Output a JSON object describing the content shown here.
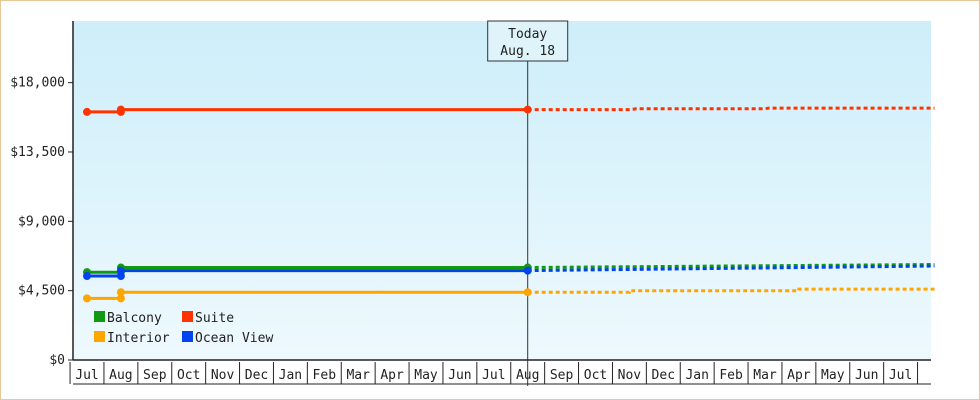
{
  "chart_data": {
    "type": "line",
    "x_months": [
      "Jul",
      "Aug",
      "Sep",
      "Oct",
      "Nov",
      "Dec",
      "Jan",
      "Feb",
      "Mar",
      "Apr",
      "May",
      "Jun",
      "Jul",
      "Aug",
      "Sep",
      "Oct",
      "Nov",
      "Dec",
      "Jan",
      "Feb",
      "Mar",
      "Apr",
      "May",
      "Jun",
      "Jul"
    ],
    "ylim": [
      0,
      22000
    ],
    "yticks": [
      0,
      4500,
      9000,
      13500,
      18000
    ],
    "ytick_labels": [
      "$0",
      "$4,500",
      "$9,000",
      "$13,500",
      "$18,000"
    ],
    "grid": false,
    "legend_position": "bottom-left",
    "today_marker": {
      "line1": "Today",
      "line2": "Aug. 18",
      "month_index": 13
    },
    "series": [
      {
        "name": "Suite",
        "color": "#ff3300",
        "history": [
          [
            0.0,
            16100
          ],
          [
            1.0,
            16100
          ],
          [
            1.0,
            16250
          ],
          [
            13.0,
            16250
          ]
        ],
        "forecast": [
          [
            13.0,
            16250
          ],
          [
            16.0,
            16250
          ],
          [
            16.2,
            16300
          ],
          [
            20.0,
            16300
          ],
          [
            20.1,
            16350
          ],
          [
            25.0,
            16350
          ]
        ]
      },
      {
        "name": "Balcony",
        "color": "#119911",
        "history": [
          [
            0.0,
            5700
          ],
          [
            1.0,
            5700
          ],
          [
            1.0,
            6000
          ],
          [
            13.0,
            6000
          ]
        ],
        "forecast": [
          [
            13.0,
            6000
          ],
          [
            25.0,
            6200
          ]
        ]
      },
      {
        "name": "Ocean View",
        "color": "#0044ee",
        "history": [
          [
            0.0,
            5450
          ],
          [
            1.0,
            5450
          ],
          [
            1.0,
            5800
          ],
          [
            13.0,
            5800
          ]
        ],
        "forecast": [
          [
            13.0,
            5800
          ],
          [
            25.0,
            6100
          ]
        ]
      },
      {
        "name": "Interior",
        "color": "#ffa500",
        "history": [
          [
            0.0,
            4000
          ],
          [
            1.0,
            4000
          ],
          [
            1.0,
            4400
          ],
          [
            13.0,
            4400
          ]
        ],
        "forecast": [
          [
            13.0,
            4400
          ],
          [
            16.0,
            4400
          ],
          [
            16.0,
            4500
          ],
          [
            21.0,
            4500
          ],
          [
            21.0,
            4600
          ],
          [
            25.0,
            4600
          ]
        ]
      }
    ],
    "history_markers": [
      0.0,
      1.0,
      13.0
    ],
    "legend": [
      {
        "name": "Balcony",
        "color": "#119911"
      },
      {
        "name": "Suite",
        "color": "#ff3300"
      },
      {
        "name": "Interior",
        "color": "#ffa500"
      },
      {
        "name": "Ocean View",
        "color": "#0044ee"
      }
    ]
  }
}
